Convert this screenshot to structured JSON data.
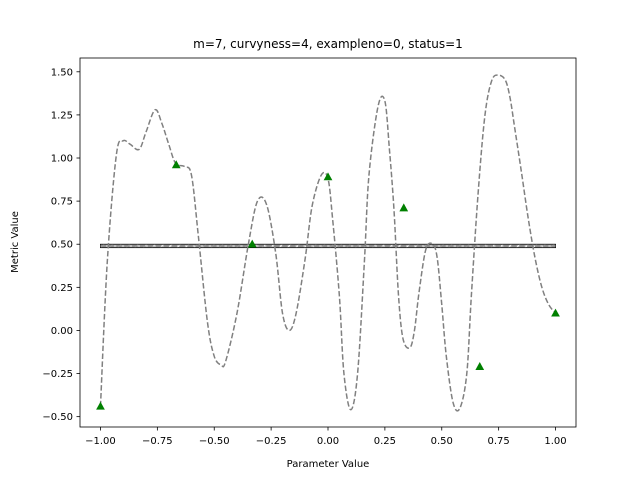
{
  "chart_data": {
    "type": "line",
    "title": "m=7, curvyness=4, exampleno=0, status=1",
    "xlabel": "Parameter Value",
    "ylabel": "Metric Value",
    "xlim": [
      -1.09,
      1.09
    ],
    "ylim": [
      -0.56,
      1.58
    ],
    "xticks": [
      -1.0,
      -0.75,
      -0.5,
      -0.25,
      0.0,
      0.25,
      0.5,
      0.75,
      1.0
    ],
    "xtick_labels": [
      "−1.00",
      "−0.75",
      "−0.50",
      "−0.25",
      "0.00",
      "0.25",
      "0.50",
      "0.75",
      "1.00"
    ],
    "yticks": [
      -0.5,
      -0.25,
      0.0,
      0.25,
      0.5,
      0.75,
      1.0,
      1.25,
      1.5
    ],
    "ytick_labels": [
      "−0.50",
      "−0.25",
      "0.00",
      "0.25",
      "0.50",
      "0.75",
      "1.00",
      "1.25",
      "1.50"
    ],
    "grid": false,
    "legend": "none",
    "series": [
      {
        "style": "dashed",
        "color": "#808080",
        "x": [
          -1.0,
          -0.97,
          -0.93,
          -0.9,
          -0.87,
          -0.83,
          -0.8,
          -0.76,
          -0.73,
          -0.7,
          -0.67,
          -0.63,
          -0.6,
          -0.57,
          -0.53,
          -0.5,
          -0.47,
          -0.45,
          -0.4,
          -0.35,
          -0.31,
          -0.27,
          -0.23,
          -0.2,
          -0.17,
          -0.14,
          -0.1,
          -0.07,
          -0.03,
          0.0,
          0.02,
          0.05,
          0.07,
          0.1,
          0.13,
          0.16,
          0.18,
          0.22,
          0.25,
          0.27,
          0.29,
          0.31,
          0.33,
          0.36,
          0.38,
          0.4,
          0.43,
          0.46,
          0.48,
          0.5,
          0.52,
          0.55,
          0.58,
          0.61,
          0.63,
          0.66,
          0.69,
          0.72,
          0.75,
          0.78,
          0.8,
          0.82,
          0.85,
          0.88,
          0.91,
          0.94,
          0.97,
          1.0
        ],
        "y": [
          -0.44,
          0.4,
          1.02,
          1.1,
          1.08,
          1.05,
          1.15,
          1.28,
          1.2,
          1.08,
          0.97,
          0.95,
          0.9,
          0.55,
          0.05,
          -0.15,
          -0.2,
          -0.18,
          0.1,
          0.5,
          0.75,
          0.73,
          0.45,
          0.1,
          0.0,
          0.1,
          0.42,
          0.72,
          0.9,
          0.88,
          0.65,
          0.2,
          -0.25,
          -0.46,
          -0.25,
          0.4,
          0.9,
          1.3,
          1.33,
          1.05,
          0.7,
          0.2,
          -0.05,
          -0.1,
          0.0,
          0.22,
          0.47,
          0.5,
          0.42,
          0.15,
          -0.15,
          -0.42,
          -0.45,
          -0.25,
          0.2,
          0.8,
          1.25,
          1.45,
          1.48,
          1.45,
          1.35,
          1.18,
          0.92,
          0.65,
          0.42,
          0.25,
          0.15,
          0.1
        ]
      },
      {
        "style": "dashed",
        "color": "#808080",
        "x": [
          -1.0,
          1.0
        ],
        "y": [
          0.49,
          0.49
        ]
      }
    ],
    "band": {
      "x": [
        -1.0,
        1.0
      ],
      "ymin": 0.48,
      "ymax": 0.5,
      "color": "#bbbbbb",
      "edgecolor": "#000000"
    },
    "markers": {
      "shape": "triangle-up",
      "color": "#008000",
      "x": [
        -1.0,
        -0.667,
        -0.333,
        0.0,
        0.333,
        0.667,
        1.0
      ],
      "y": [
        -0.44,
        0.96,
        0.5,
        0.89,
        0.71,
        -0.21,
        0.1
      ]
    }
  }
}
